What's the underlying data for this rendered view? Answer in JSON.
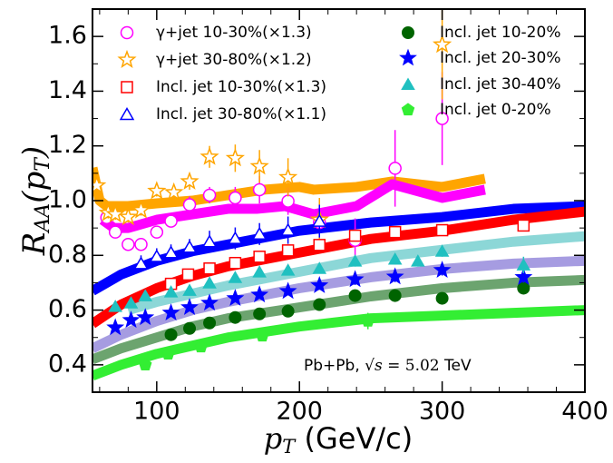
{
  "chart_data": {
    "type": "scatter",
    "xlabel_parts": [
      "p",
      "T",
      " (GeV/c)"
    ],
    "ylabel_parts": [
      "R",
      "AA",
      "(p",
      "T",
      ")"
    ],
    "annotation_parts": [
      "Pb+Pb, ",
      "√s",
      " = 5.02",
      " TeV"
    ],
    "xlim": [
      55,
      400
    ],
    "ylim": [
      0.3,
      1.7
    ],
    "xticks": [
      100,
      200,
      300,
      400
    ],
    "yticks": [
      0.4,
      0.6,
      0.8,
      1.0,
      1.2,
      1.4,
      1.6
    ],
    "xminorticks": [
      60,
      80,
      120,
      140,
      160,
      180,
      220,
      240,
      260,
      280,
      320,
      340,
      360,
      380
    ],
    "yminorticks": [
      0.3,
      0.5,
      0.7,
      0.9,
      1.1,
      1.3,
      1.5,
      1.7
    ],
    "curves": [
      {
        "color": "#ffa500",
        "alpha": 1,
        "x": [
          55,
          60,
          65,
          80,
          100,
          125,
          150,
          175,
          200,
          210,
          240,
          265,
          300,
          330
        ],
        "values": [
          1.12,
          1.0,
          0.98,
          0.98,
          0.99,
          1.0,
          1.02,
          1.04,
          1.05,
          1.04,
          1.05,
          1.07,
          1.05,
          1.08
        ]
      },
      {
        "color": "#ff00ff",
        "alpha": 1,
        "x": [
          62,
          70,
          80,
          100,
          125,
          150,
          170,
          190,
          210,
          240,
          265,
          300,
          330
        ],
        "values": [
          0.93,
          0.9,
          0.9,
          0.93,
          0.95,
          0.97,
          0.97,
          0.98,
          0.95,
          0.98,
          1.06,
          1.01,
          1.04
        ]
      },
      {
        "color": "#0000ff",
        "alpha": 1,
        "x": [
          55,
          75,
          100,
          125,
          150,
          200,
          250,
          300,
          350,
          400
        ],
        "values": [
          0.67,
          0.73,
          0.78,
          0.815,
          0.84,
          0.89,
          0.92,
          0.94,
          0.97,
          0.98
        ]
      },
      {
        "color": "#ff0000",
        "alpha": 1,
        "x": [
          55,
          75,
          100,
          125,
          150,
          200,
          250,
          300,
          350,
          400
        ],
        "values": [
          0.55,
          0.62,
          0.68,
          0.725,
          0.76,
          0.81,
          0.86,
          0.89,
          0.93,
          0.96
        ]
      },
      {
        "color": "#3fbdbd",
        "alpha": 0.6,
        "x": [
          80,
          100,
          125,
          150,
          200,
          250,
          300,
          350,
          400
        ],
        "values": [
          0.6,
          0.63,
          0.66,
          0.69,
          0.74,
          0.79,
          0.82,
          0.85,
          0.87
        ]
      },
      {
        "color": "#6a5acd",
        "alpha": 0.6,
        "x": [
          55,
          75,
          100,
          125,
          150,
          200,
          250,
          300,
          350,
          400
        ],
        "values": [
          0.46,
          0.51,
          0.56,
          0.6,
          0.63,
          0.68,
          0.72,
          0.75,
          0.77,
          0.78
        ]
      },
      {
        "color": "#2e7d32",
        "alpha": 0.7,
        "x": [
          55,
          75,
          100,
          125,
          150,
          200,
          250,
          300,
          350,
          400
        ],
        "values": [
          0.42,
          0.46,
          0.5,
          0.54,
          0.57,
          0.61,
          0.65,
          0.68,
          0.7,
          0.71
        ]
      },
      {
        "color": "#33ee33",
        "alpha": 1,
        "x": [
          55,
          75,
          100,
          125,
          150,
          200,
          250,
          300,
          350,
          400
        ],
        "values": [
          0.36,
          0.4,
          0.44,
          0.47,
          0.5,
          0.54,
          0.57,
          0.58,
          0.59,
          0.6
        ]
      }
    ],
    "series": [
      {
        "name": "γ+jet 10-30%(×1.3)",
        "color": "#ff00ff",
        "marker": "circle-open",
        "x": [
          65,
          71,
          80,
          89,
          100,
          110,
          123,
          137,
          155,
          172,
          192,
          214,
          239,
          267,
          300
        ],
        "values": [
          0.938,
          0.885,
          0.84,
          0.84,
          0.885,
          0.925,
          0.985,
          1.02,
          1.01,
          1.04,
          0.998,
          0.92,
          0.855,
          1.118,
          1.3
        ],
        "errors": [
          0.02,
          0.02,
          0.02,
          0.02,
          0.02,
          0.02,
          0.03,
          0.03,
          0.04,
          0.05,
          0.05,
          0.06,
          0.08,
          0.14,
          0.17
        ]
      },
      {
        "name": "γ+jet 30-80%(×1.2)",
        "color": "#ffa500",
        "marker": "star-open",
        "x": [
          58,
          66,
          71,
          80,
          89,
          100,
          112,
          123,
          137,
          155,
          172,
          192,
          214,
          300
        ],
        "values": [
          1.055,
          0.955,
          0.95,
          0.94,
          0.965,
          1.035,
          1.03,
          1.07,
          1.16,
          1.155,
          1.125,
          1.085,
          0.93,
          1.57
        ],
        "errors": [
          0.03,
          0.02,
          0.02,
          0.02,
          0.02,
          0.02,
          0.03,
          0.03,
          0.04,
          0.05,
          0.06,
          0.07,
          0.08,
          0.2
        ]
      },
      {
        "name": "Incl. jet 10-30%(×1.3)",
        "color": "#ff0000",
        "marker": "square-open",
        "x": [
          110,
          122,
          137,
          155,
          172,
          192,
          214,
          239,
          267,
          300,
          357
        ],
        "values": [
          0.696,
          0.73,
          0.752,
          0.772,
          0.795,
          0.818,
          0.838,
          0.872,
          0.885,
          0.892,
          0.909
        ],
        "errors": [
          0.01,
          0.01,
          0.01,
          0.01,
          0.01,
          0.01,
          0.01,
          0.02,
          0.02,
          0.02,
          0.02
        ]
      },
      {
        "name": "Incl. jet 30-80%(×1.1)",
        "color": "#0000ff",
        "marker": "triangle-open",
        "x": [
          89,
          100,
          110,
          123,
          137,
          155,
          172,
          192,
          214
        ],
        "values": [
          0.77,
          0.796,
          0.81,
          0.83,
          0.85,
          0.862,
          0.878,
          0.892,
          0.925
        ],
        "errors": [
          0.03,
          0.03,
          0.03,
          0.03,
          0.04,
          0.04,
          0.04,
          0.05,
          0.06
        ]
      },
      {
        "name": "Incl. jet 10-20%",
        "color": "#006400",
        "marker": "circle",
        "x": [
          110,
          123,
          137,
          155,
          172,
          192,
          214,
          239,
          267,
          300,
          357
        ],
        "values": [
          0.51,
          0.533,
          0.553,
          0.573,
          0.586,
          0.596,
          0.62,
          0.653,
          0.653,
          0.643,
          0.68
        ],
        "errors": [
          0.01,
          0.01,
          0.01,
          0.01,
          0.01,
          0.01,
          0.01,
          0.01,
          0.02,
          0.02,
          0.02
        ]
      },
      {
        "name": "Incl. jet 20-30%",
        "color": "#0000ff",
        "marker": "star",
        "x": [
          71,
          82,
          92,
          110,
          123,
          137,
          155,
          172,
          192,
          214,
          239,
          267,
          300,
          357
        ],
        "values": [
          0.536,
          0.563,
          0.573,
          0.59,
          0.61,
          0.626,
          0.643,
          0.656,
          0.669,
          0.69,
          0.712,
          0.722,
          0.746,
          0.72
        ],
        "errors": [
          0.01,
          0.01,
          0.01,
          0.01,
          0.01,
          0.01,
          0.01,
          0.01,
          0.01,
          0.01,
          0.02,
          0.02,
          0.02,
          0.02
        ]
      },
      {
        "name": "Incl. jet 30-40%",
        "color": "#20c0c0",
        "marker": "triangle",
        "x": [
          71,
          82,
          92,
          110,
          123,
          137,
          155,
          172,
          192,
          214,
          239,
          267,
          283,
          300,
          357
        ],
        "values": [
          0.613,
          0.626,
          0.652,
          0.666,
          0.672,
          0.699,
          0.719,
          0.739,
          0.746,
          0.752,
          0.779,
          0.786,
          0.779,
          0.815,
          0.765
        ],
        "errors": [
          0.01,
          0.01,
          0.01,
          0.01,
          0.01,
          0.01,
          0.01,
          0.01,
          0.01,
          0.01,
          0.02,
          0.02,
          0.02,
          0.02,
          0.03
        ]
      },
      {
        "name": "Incl. jet 0-20%",
        "color": "#33ee33",
        "marker": "pentagon",
        "x": [
          92,
          108,
          131,
          174,
          248
        ],
        "values": [
          0.4,
          0.44,
          0.466,
          0.506,
          0.56
        ],
        "errors": [
          0.01,
          0.01,
          0.01,
          0.02,
          0.03
        ]
      }
    ]
  }
}
